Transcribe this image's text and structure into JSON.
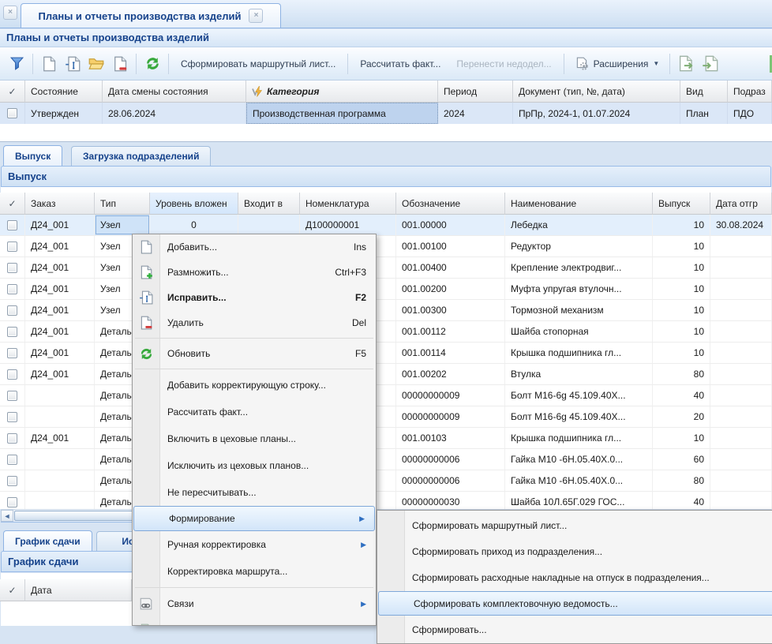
{
  "colors": {
    "accent_text": "#15428b",
    "panel_border": "#99bbe8",
    "selected_row": "#e3effc",
    "menu_highlight_border": "#7fa8d9"
  },
  "icons": {
    "check": "✓",
    "close": "×",
    "dropdown": "▼",
    "arrow_right": "▶",
    "scroll_left": "◄"
  },
  "window": {
    "tab_title": "Планы и отчеты производства изделий",
    "panel_title": "Планы и отчеты производства изделий"
  },
  "toolbar": {
    "make_route_sheet": "Сформировать маршрутный лист...",
    "calc_fact": "Рассчитать факт...",
    "carry_over": "Перенести недодел...",
    "extensions": "Расширения"
  },
  "plans_grid": {
    "headers": {
      "state": "Состояние",
      "state_date": "Дата смены состояния",
      "category": "Категория",
      "period": "Период",
      "document": "Документ (тип, №, дата)",
      "kind": "Вид",
      "department": "Подраз"
    },
    "row": {
      "state": "Утвержден",
      "state_date": "28.06.2024",
      "category": "Производственная программа",
      "period": "2024",
      "document": "ПрПр, 2024-1, 01.07.2024",
      "kind": "План",
      "department": "ПДО"
    }
  },
  "tabs": {
    "vypusk": "Выпуск",
    "load": "Загрузка подразделений"
  },
  "vypusk_panel": {
    "title": "Выпуск",
    "headers": {
      "order": "Заказ",
      "type": "Тип",
      "level": "Уровень вложен",
      "parent": "Входит в",
      "nom": "Номенклатура",
      "code": "Обозначение",
      "name": "Наименование",
      "qty": "Выпуск",
      "ship": "Дата отгр"
    },
    "rows": [
      {
        "order": "Д24_001",
        "type": "Узел",
        "level": "0",
        "parent": "",
        "nom": "Д100000001",
        "code": "001.00000",
        "name": "Лебедка",
        "qty": "10",
        "ship": "30.08.2024"
      },
      {
        "order": "Д24_001",
        "type": "Узел",
        "level": "",
        "parent": "",
        "nom": "",
        "code": "001.00100",
        "name": "Редуктор",
        "qty": "10",
        "ship": ""
      },
      {
        "order": "Д24_001",
        "type": "Узел",
        "level": "",
        "parent": "",
        "nom": "",
        "code": "001.00400",
        "name": "Крепление электродвиг...",
        "qty": "10",
        "ship": ""
      },
      {
        "order": "Д24_001",
        "type": "Узел",
        "level": "",
        "parent": "",
        "nom": "",
        "code": "001.00200",
        "name": "Муфта упругая втулочн...",
        "qty": "10",
        "ship": ""
      },
      {
        "order": "Д24_001",
        "type": "Узел",
        "level": "",
        "parent": "",
        "nom": "",
        "code": "001.00300",
        "name": "Тормозной механизм",
        "qty": "10",
        "ship": ""
      },
      {
        "order": "Д24_001",
        "type": "Деталь",
        "level": "",
        "parent": "",
        "nom": "",
        "code": "001.00112",
        "name": "Шайба стопорная",
        "qty": "10",
        "ship": ""
      },
      {
        "order": "Д24_001",
        "type": "Деталь",
        "level": "",
        "parent": "",
        "nom": "",
        "code": "001.00114",
        "name": "Крышка подшипника гл...",
        "qty": "10",
        "ship": ""
      },
      {
        "order": "Д24_001",
        "type": "Деталь",
        "level": "",
        "parent": "",
        "nom": "",
        "code": "001.00202",
        "name": "Втулка",
        "qty": "80",
        "ship": ""
      },
      {
        "order": "",
        "type": "Деталь",
        "level": "",
        "parent": "",
        "nom": "",
        "code": "00000000009",
        "name": "Болт М16-6g 45.109.40Х...",
        "qty": "40",
        "ship": ""
      },
      {
        "order": "",
        "type": "Деталь",
        "level": "",
        "parent": "",
        "nom": "",
        "code": "00000000009",
        "name": "Болт М16-6g 45.109.40Х...",
        "qty": "20",
        "ship": ""
      },
      {
        "order": "Д24_001",
        "type": "Деталь",
        "level": "",
        "parent": "",
        "nom": "",
        "code": "001.00103",
        "name": "Крышка подшипника гл...",
        "qty": "10",
        "ship": ""
      },
      {
        "order": "",
        "type": "Деталь",
        "level": "",
        "parent": "",
        "nom": "",
        "code": "00000000006",
        "name": "Гайка М10 -6Н.05.40Х.0...",
        "qty": "60",
        "ship": ""
      },
      {
        "order": "",
        "type": "Деталь",
        "level": "",
        "parent": "",
        "nom": "",
        "code": "00000000006",
        "name": "Гайка М10 -6Н.05.40Х.0...",
        "qty": "80",
        "ship": ""
      },
      {
        "order": "",
        "type": "Деталь",
        "level": "",
        "parent": "",
        "nom": "",
        "code": "00000000030",
        "name": "Шайба 10Л.65Г.029 ГОС...",
        "qty": "40",
        "ship": ""
      }
    ]
  },
  "context_menu": {
    "items": [
      {
        "label": "Добавить...",
        "shortcut": "Ins"
      },
      {
        "label": "Размножить...",
        "shortcut": "Ctrl+F3"
      },
      {
        "label": "Исправить...",
        "shortcut": "F2"
      },
      {
        "label": "Удалить",
        "shortcut": "Del"
      },
      {
        "label": "Обновить",
        "shortcut": "F5"
      },
      {
        "label": "Добавить корректирующую строку..."
      },
      {
        "label": "Рассчитать факт..."
      },
      {
        "label": "Включить в цеховые планы..."
      },
      {
        "label": "Исключить из цеховых планов..."
      },
      {
        "label": "Не пересчитывать..."
      },
      {
        "label": "Формирование"
      },
      {
        "label": "Ручная корректировка"
      },
      {
        "label": "Корректировка маршрута..."
      },
      {
        "label": "Связи"
      }
    ]
  },
  "submenu": {
    "items": [
      "Сформировать маршрутный лист...",
      "Сформировать приход из подразделения...",
      "Сформировать расходные накладные на отпуск в подразделения...",
      "Сформировать комплектовочную ведомость...",
      "Сформировать..."
    ]
  },
  "schedule_panel": {
    "tab": "График сдачи",
    "tab2": "Ис",
    "title": "График сдачи",
    "headers": {
      "date": "Дата"
    }
  }
}
